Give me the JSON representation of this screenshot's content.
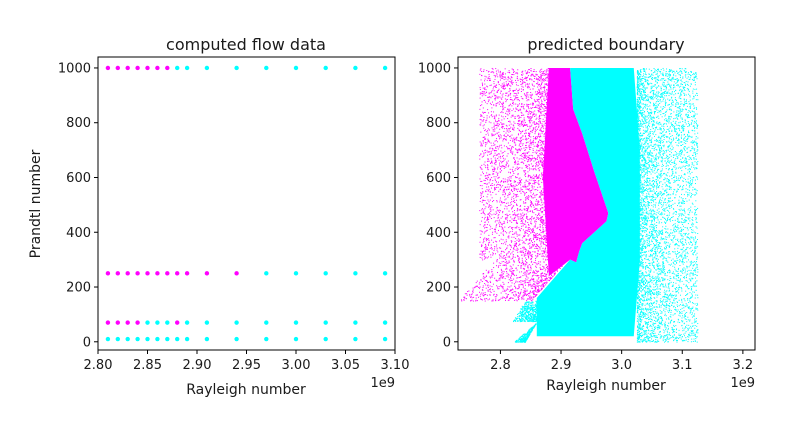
{
  "chart_data": [
    {
      "type": "scatter",
      "title": "computed flow data",
      "xlabel": "Rayleigh number",
      "ylabel": "Prandtl number",
      "x_offset_label": "1e9",
      "xlim": [
        2.8,
        3.1
      ],
      "ylim": [
        -30,
        1040
      ],
      "xticks": [
        "2.80",
        "2.85",
        "2.90",
        "2.95",
        "3.00",
        "3.05",
        "3.10"
      ],
      "yticks": [
        "0",
        "200",
        "400",
        "600",
        "800",
        "1000"
      ],
      "xtick_values": [
        2.8,
        2.85,
        2.9,
        2.95,
        3.0,
        3.05,
        3.1
      ],
      "ytick_values": [
        0,
        200,
        400,
        600,
        800,
        1000
      ],
      "colors": {
        "magenta": "#ff00ff",
        "cyan": "#00ffff"
      },
      "series": [
        {
          "color": "#ff00ff",
          "points": [
            [
              2.81,
              1000
            ],
            [
              2.82,
              1000
            ],
            [
              2.83,
              1000
            ],
            [
              2.84,
              1000
            ],
            [
              2.85,
              1000
            ],
            [
              2.86,
              1000
            ],
            [
              2.87,
              1000
            ],
            [
              2.81,
              250
            ],
            [
              2.82,
              250
            ],
            [
              2.83,
              250
            ],
            [
              2.84,
              250
            ],
            [
              2.85,
              250
            ],
            [
              2.86,
              250
            ],
            [
              2.87,
              250
            ],
            [
              2.88,
              250
            ],
            [
              2.89,
              250
            ],
            [
              2.91,
              250
            ],
            [
              2.94,
              250
            ],
            [
              2.81,
              70
            ],
            [
              2.82,
              70
            ],
            [
              2.83,
              70
            ],
            [
              2.84,
              70
            ],
            [
              2.88,
              70
            ]
          ]
        },
        {
          "color": "#00ffff",
          "points": [
            [
              2.88,
              1000
            ],
            [
              2.89,
              1000
            ],
            [
              2.91,
              1000
            ],
            [
              2.94,
              1000
            ],
            [
              2.97,
              1000
            ],
            [
              3.0,
              1000
            ],
            [
              3.03,
              1000
            ],
            [
              3.06,
              1000
            ],
            [
              3.09,
              1000
            ],
            [
              2.97,
              250
            ],
            [
              3.0,
              250
            ],
            [
              3.03,
              250
            ],
            [
              3.06,
              250
            ],
            [
              3.09,
              250
            ],
            [
              2.85,
              70
            ],
            [
              2.86,
              70
            ],
            [
              2.87,
              70
            ],
            [
              2.89,
              70
            ],
            [
              2.91,
              70
            ],
            [
              2.94,
              70
            ],
            [
              2.97,
              70
            ],
            [
              3.0,
              70
            ],
            [
              3.03,
              70
            ],
            [
              3.06,
              70
            ],
            [
              3.09,
              70
            ],
            [
              2.81,
              10
            ],
            [
              2.82,
              10
            ],
            [
              2.83,
              10
            ],
            [
              2.84,
              10
            ],
            [
              2.85,
              10
            ],
            [
              2.86,
              10
            ],
            [
              2.87,
              10
            ],
            [
              2.88,
              10
            ],
            [
              2.89,
              10
            ],
            [
              2.91,
              10
            ],
            [
              2.94,
              10
            ],
            [
              2.97,
              10
            ],
            [
              3.0,
              10
            ],
            [
              3.03,
              10
            ],
            [
              3.06,
              10
            ],
            [
              3.09,
              10
            ]
          ]
        }
      ]
    },
    {
      "type": "scatter",
      "title": "predicted boundary",
      "xlabel": "Rayleigh number",
      "x_offset_label": "1e9",
      "xlim": [
        2.73,
        3.22
      ],
      "ylim": [
        -30,
        1040
      ],
      "xticks": [
        "2.8",
        "2.9",
        "3.0",
        "3.1",
        "3.2"
      ],
      "yticks": [
        "0",
        "200",
        "400",
        "600",
        "800",
        "1000"
      ],
      "xtick_values": [
        2.8,
        2.9,
        3.0,
        3.1,
        3.2
      ],
      "ytick_values": [
        0,
        200,
        400,
        600,
        800,
        1000
      ],
      "colors": {
        "magenta": "#ff00ff",
        "cyan": "#00ffff"
      },
      "boundary": [
        [
          2.852,
          150
        ],
        [
          2.915,
          300
        ],
        [
          2.925,
          290
        ],
        [
          2.93,
          330
        ],
        [
          2.935,
          360
        ],
        [
          2.955,
          400
        ],
        [
          2.975,
          440
        ],
        [
          2.978,
          470
        ],
        [
          2.975,
          490
        ],
        [
          2.955,
          620
        ],
        [
          2.935,
          760
        ],
        [
          2.92,
          850
        ],
        [
          2.915,
          1000
        ]
      ],
      "magenta_region_left_edge": [
        [
          2.81,
          1000
        ],
        [
          2.82,
          800
        ],
        [
          2.83,
          500
        ],
        [
          2.855,
          200
        ],
        [
          2.85,
          150
        ]
      ],
      "cyan_region_right_edge": [
        [
          3.06,
          1000
        ],
        [
          3.07,
          800
        ],
        [
          3.06,
          500
        ],
        [
          3.055,
          200
        ],
        [
          3.05,
          0
        ]
      ],
      "cyan_region_left_edge": [
        [
          2.82,
          0
        ],
        [
          2.84,
          80
        ],
        [
          2.852,
          150
        ]
      ]
    }
  ]
}
